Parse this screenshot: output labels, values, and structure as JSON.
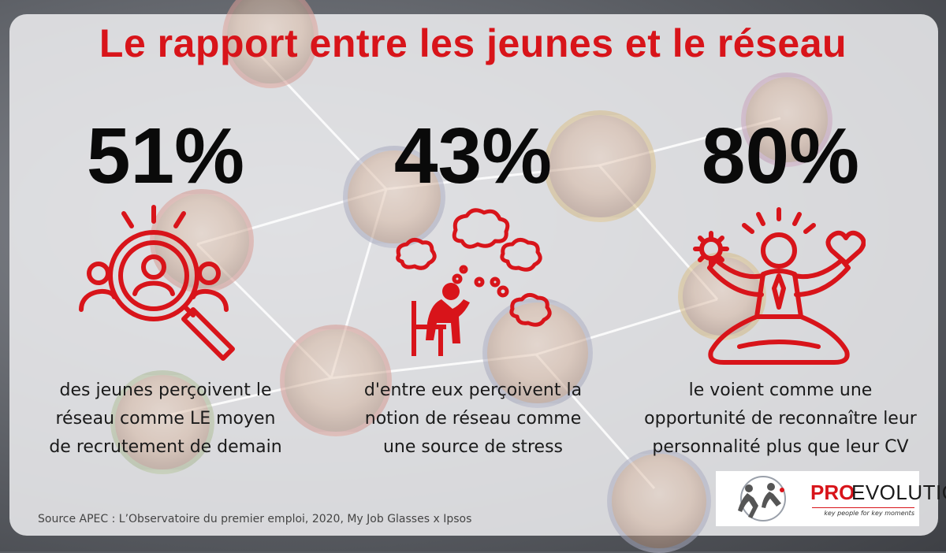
{
  "title": "Le rapport entre les jeunes et le réseau",
  "stats": [
    {
      "value": "51%",
      "lines": [
        "des jeunes perçoivent le",
        "réseau comme LE moyen",
        "de recrutement de demain"
      ],
      "icon": "magnifier-people-icon"
    },
    {
      "value": "43%",
      "lines": [
        "d'entre eux perçoivent la",
        "notion de réseau comme",
        "une source de stress"
      ],
      "icon": "stressed-person-thought-clouds-icon"
    },
    {
      "value": "80%",
      "lines": [
        "le voient comme une",
        "opportunité de reconnaître leur",
        "personnalité plus que leur CV"
      ],
      "icon": "person-gear-heart-icon"
    }
  ],
  "source": "Source APEC : L’Observatoire du premier emploi, 2020, My Job Glasses x Ipsos",
  "logo": {
    "brand_a": "PRO",
    "brand_b": "EVOLUTION",
    "tagline": "key people for key moments"
  },
  "colors": {
    "accent": "#d8141a",
    "text": "#0a0a0a"
  }
}
